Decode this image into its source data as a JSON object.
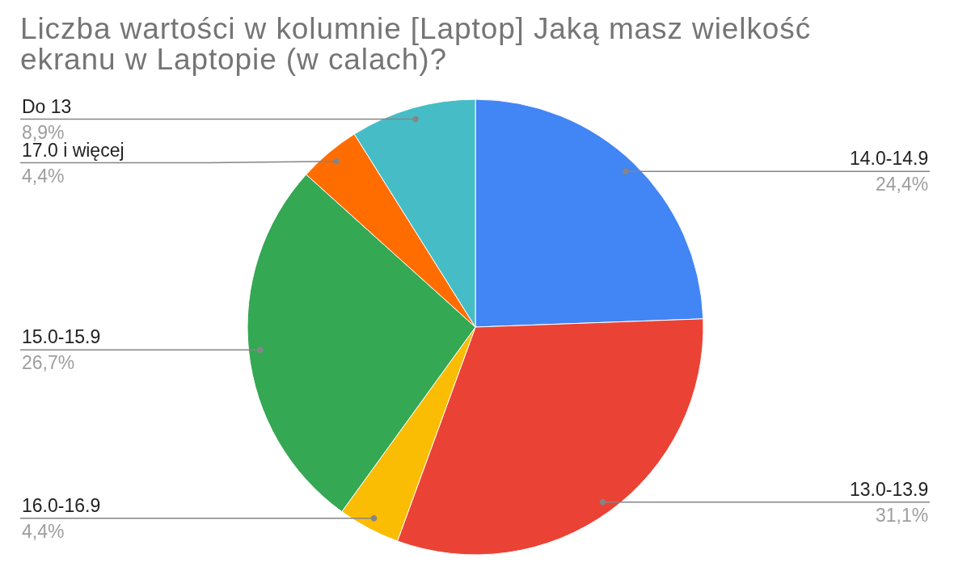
{
  "chart_data": {
    "type": "pie",
    "title": "Liczba wartości w kolumnie [Laptop] Jaką masz wielkość ekranu w Laptopie (w calach)?",
    "categories": [
      "14.0-14.9",
      "13.0-13.9",
      "16.0-16.9",
      "15.0-15.9",
      "17.0 i więcej",
      "Do 13"
    ],
    "values": [
      24.4,
      31.1,
      4.4,
      26.7,
      4.4,
      8.9
    ],
    "colors": [
      "#4285f4",
      "#ea4335",
      "#fbbc04",
      "#34a853",
      "#ff6d01",
      "#46bdc6"
    ],
    "value_labels": [
      "24,4%",
      "31,1%",
      "4,4%",
      "26,7%",
      "4,4%",
      "8,9%"
    ]
  }
}
